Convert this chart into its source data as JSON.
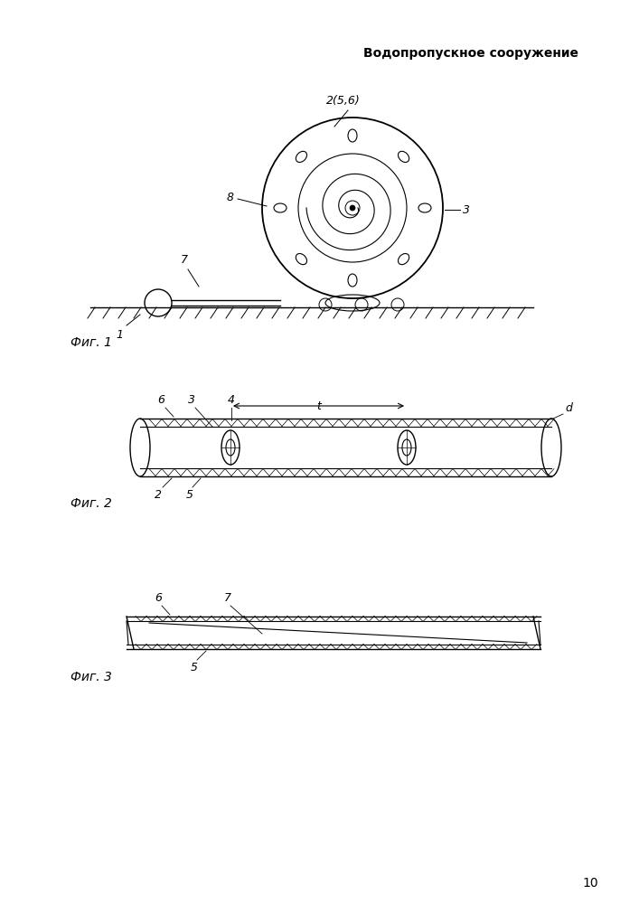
{
  "title": "Водопропускное сооружение",
  "fig1_label": "Фиг. 1",
  "fig2_label": "Фиг. 2",
  "fig3_label": "Фиг. 3",
  "page_number": "10",
  "bg_color": "#ffffff",
  "line_color": "#000000"
}
